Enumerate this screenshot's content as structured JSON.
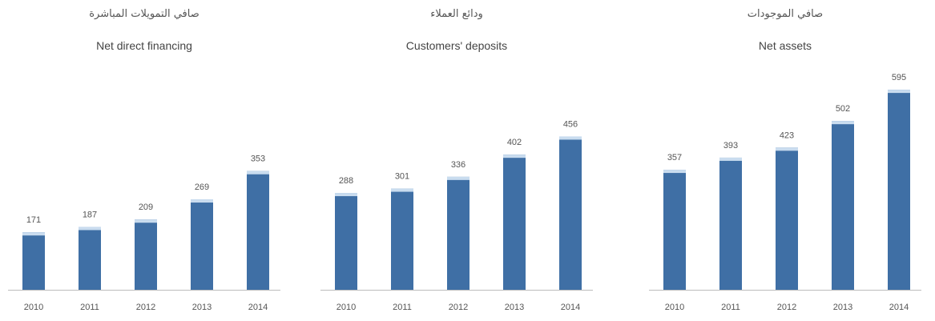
{
  "colors": {
    "bar": "#3F6FA5",
    "bar_top": "#C9DCEF",
    "axis": "#bdbdbd"
  },
  "chart_data": [
    {
      "type": "bar",
      "title_ar": "صافي التمويلات المباشرة",
      "title": "Net direct financing",
      "categories": [
        "2010",
        "2011",
        "2012",
        "2013",
        "2014"
      ],
      "values": [
        171,
        187,
        209,
        269,
        353
      ],
      "ylim": [
        0,
        600
      ],
      "grid": false
    },
    {
      "type": "bar",
      "title_ar": "ودائع العملاء",
      "title": "Customers' deposits",
      "categories": [
        "2010",
        "2011",
        "2012",
        "2013",
        "2014"
      ],
      "values": [
        288,
        301,
        336,
        402,
        456
      ],
      "ylim": [
        0,
        600
      ],
      "grid": false
    },
    {
      "type": "bar",
      "title_ar": "صافي الموجودات",
      "title": "Net assets",
      "categories": [
        "2010",
        "2011",
        "2012",
        "2013",
        "2014"
      ],
      "values": [
        357,
        393,
        423,
        502,
        595
      ],
      "ylim": [
        0,
        600
      ],
      "grid": false
    }
  ]
}
